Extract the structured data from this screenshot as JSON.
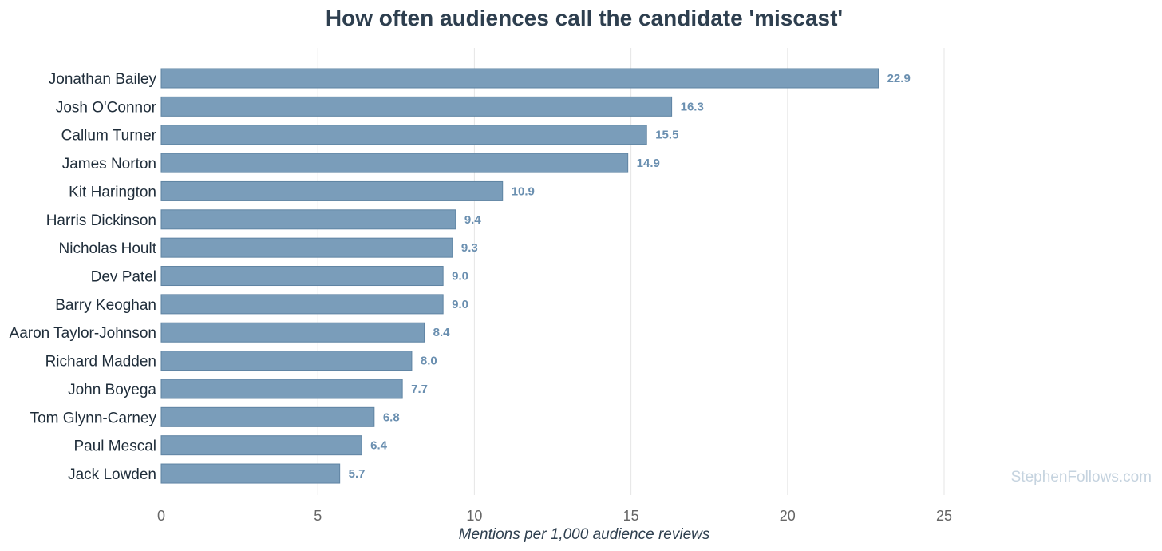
{
  "chart_data": {
    "type": "bar",
    "orientation": "horizontal",
    "title": "How often audiences call the candidate 'miscast'",
    "xlabel": "Mentions per 1,000 audience reviews",
    "ylabel": "",
    "xlim": [
      0,
      25
    ],
    "xticks": [
      0,
      5,
      10,
      15,
      20,
      25
    ],
    "grid": true,
    "categories": [
      "Jonathan Bailey",
      "Josh O'Connor",
      "Callum Turner",
      "James Norton",
      "Kit Harington",
      "Harris Dickinson",
      "Nicholas Hoult",
      "Dev Patel",
      "Barry Keoghan",
      "Aaron Taylor-Johnson",
      "Richard Madden",
      "John Boyega",
      "Tom Glynn-Carney",
      "Paul Mescal",
      "Jack Lowden"
    ],
    "values": [
      22.9,
      16.3,
      15.5,
      14.9,
      10.9,
      9.4,
      9.3,
      9.0,
      9.0,
      8.4,
      8.0,
      7.7,
      6.8,
      6.4,
      5.7
    ],
    "value_labels": [
      "22.9",
      "16.3",
      "15.5",
      "14.9",
      "10.9",
      "9.4",
      "9.3",
      "9.0",
      "9.0",
      "8.4",
      "8.0",
      "7.7",
      "6.8",
      "6.4",
      "5.7"
    ],
    "colors": {
      "bar": "#7a9dba",
      "bar_edge": "#5f84a3",
      "value_label": "#6a8fb0",
      "title": "#2e3f4f"
    }
  },
  "watermark": "StephenFollows.com"
}
